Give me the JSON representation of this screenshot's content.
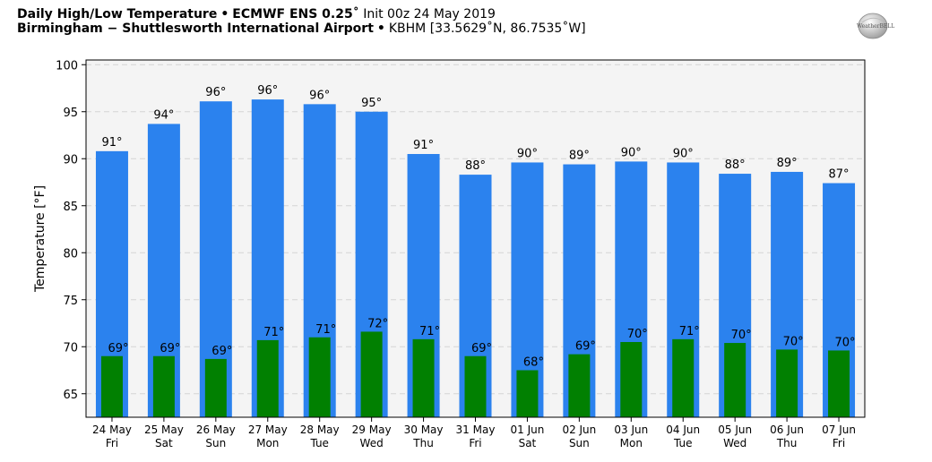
{
  "header": {
    "line1_title": "Daily High/Low Temperature",
    "line1_model": "ECMWF ENS 0.25˚",
    "line1_init": "Init 00z 24 May 2019",
    "line2_location": "Birmingham − Shuttlesworth International Airport",
    "line2_details": "KBHM [33.5629˚N, 86.7535˚W]",
    "separator": "•"
  },
  "logo": {
    "text": "WeatherBELL",
    "icon": "weatherbell-logo"
  },
  "colors": {
    "high_bar": "#2b82ee",
    "low_bar": "#018001",
    "plot_bg": "#f4f4f4",
    "grid": "#d4d4d4"
  },
  "chart_data": {
    "type": "bar",
    "ylabel": "Temperature [°F]",
    "ylim": [
      62.5,
      100.5
    ],
    "yticks": [
      65,
      70,
      75,
      80,
      85,
      90,
      95,
      100
    ],
    "grid": true,
    "categories": [
      {
        "date": "24 May",
        "day": "Fri"
      },
      {
        "date": "25 May",
        "day": "Sat"
      },
      {
        "date": "26 May",
        "day": "Sun"
      },
      {
        "date": "27 May",
        "day": "Mon"
      },
      {
        "date": "28 May",
        "day": "Tue"
      },
      {
        "date": "29 May",
        "day": "Wed"
      },
      {
        "date": "30 May",
        "day": "Thu"
      },
      {
        "date": "31 May",
        "day": "Fri"
      },
      {
        "date": "01 Jun",
        "day": "Sat"
      },
      {
        "date": "02 Jun",
        "day": "Sun"
      },
      {
        "date": "03 Jun",
        "day": "Mon"
      },
      {
        "date": "04 Jun",
        "day": "Tue"
      },
      {
        "date": "05 Jun",
        "day": "Wed"
      },
      {
        "date": "06 Jun",
        "day": "Thu"
      },
      {
        "date": "07 Jun",
        "day": "Fri"
      }
    ],
    "series": [
      {
        "role": "high",
        "values": [
          90.8,
          93.7,
          96.1,
          96.3,
          95.8,
          95.0,
          90.5,
          88.3,
          89.6,
          89.4,
          89.7,
          89.6,
          88.4,
          88.6,
          87.4
        ],
        "labels": [
          "91°",
          "94°",
          "96°",
          "96°",
          "96°",
          "95°",
          "91°",
          "88°",
          "90°",
          "89°",
          "90°",
          "90°",
          "88°",
          "89°",
          "87°"
        ]
      },
      {
        "role": "low",
        "values": [
          69.0,
          69.0,
          68.7,
          70.7,
          71.0,
          71.6,
          70.8,
          69.0,
          67.5,
          69.2,
          70.5,
          70.8,
          70.4,
          69.7,
          69.6
        ],
        "labels": [
          "69°",
          "69°",
          "69°",
          "71°",
          "71°",
          "72°",
          "71°",
          "69°",
          "68°",
          "69°",
          "70°",
          "71°",
          "70°",
          "70°",
          "70°"
        ]
      }
    ]
  }
}
